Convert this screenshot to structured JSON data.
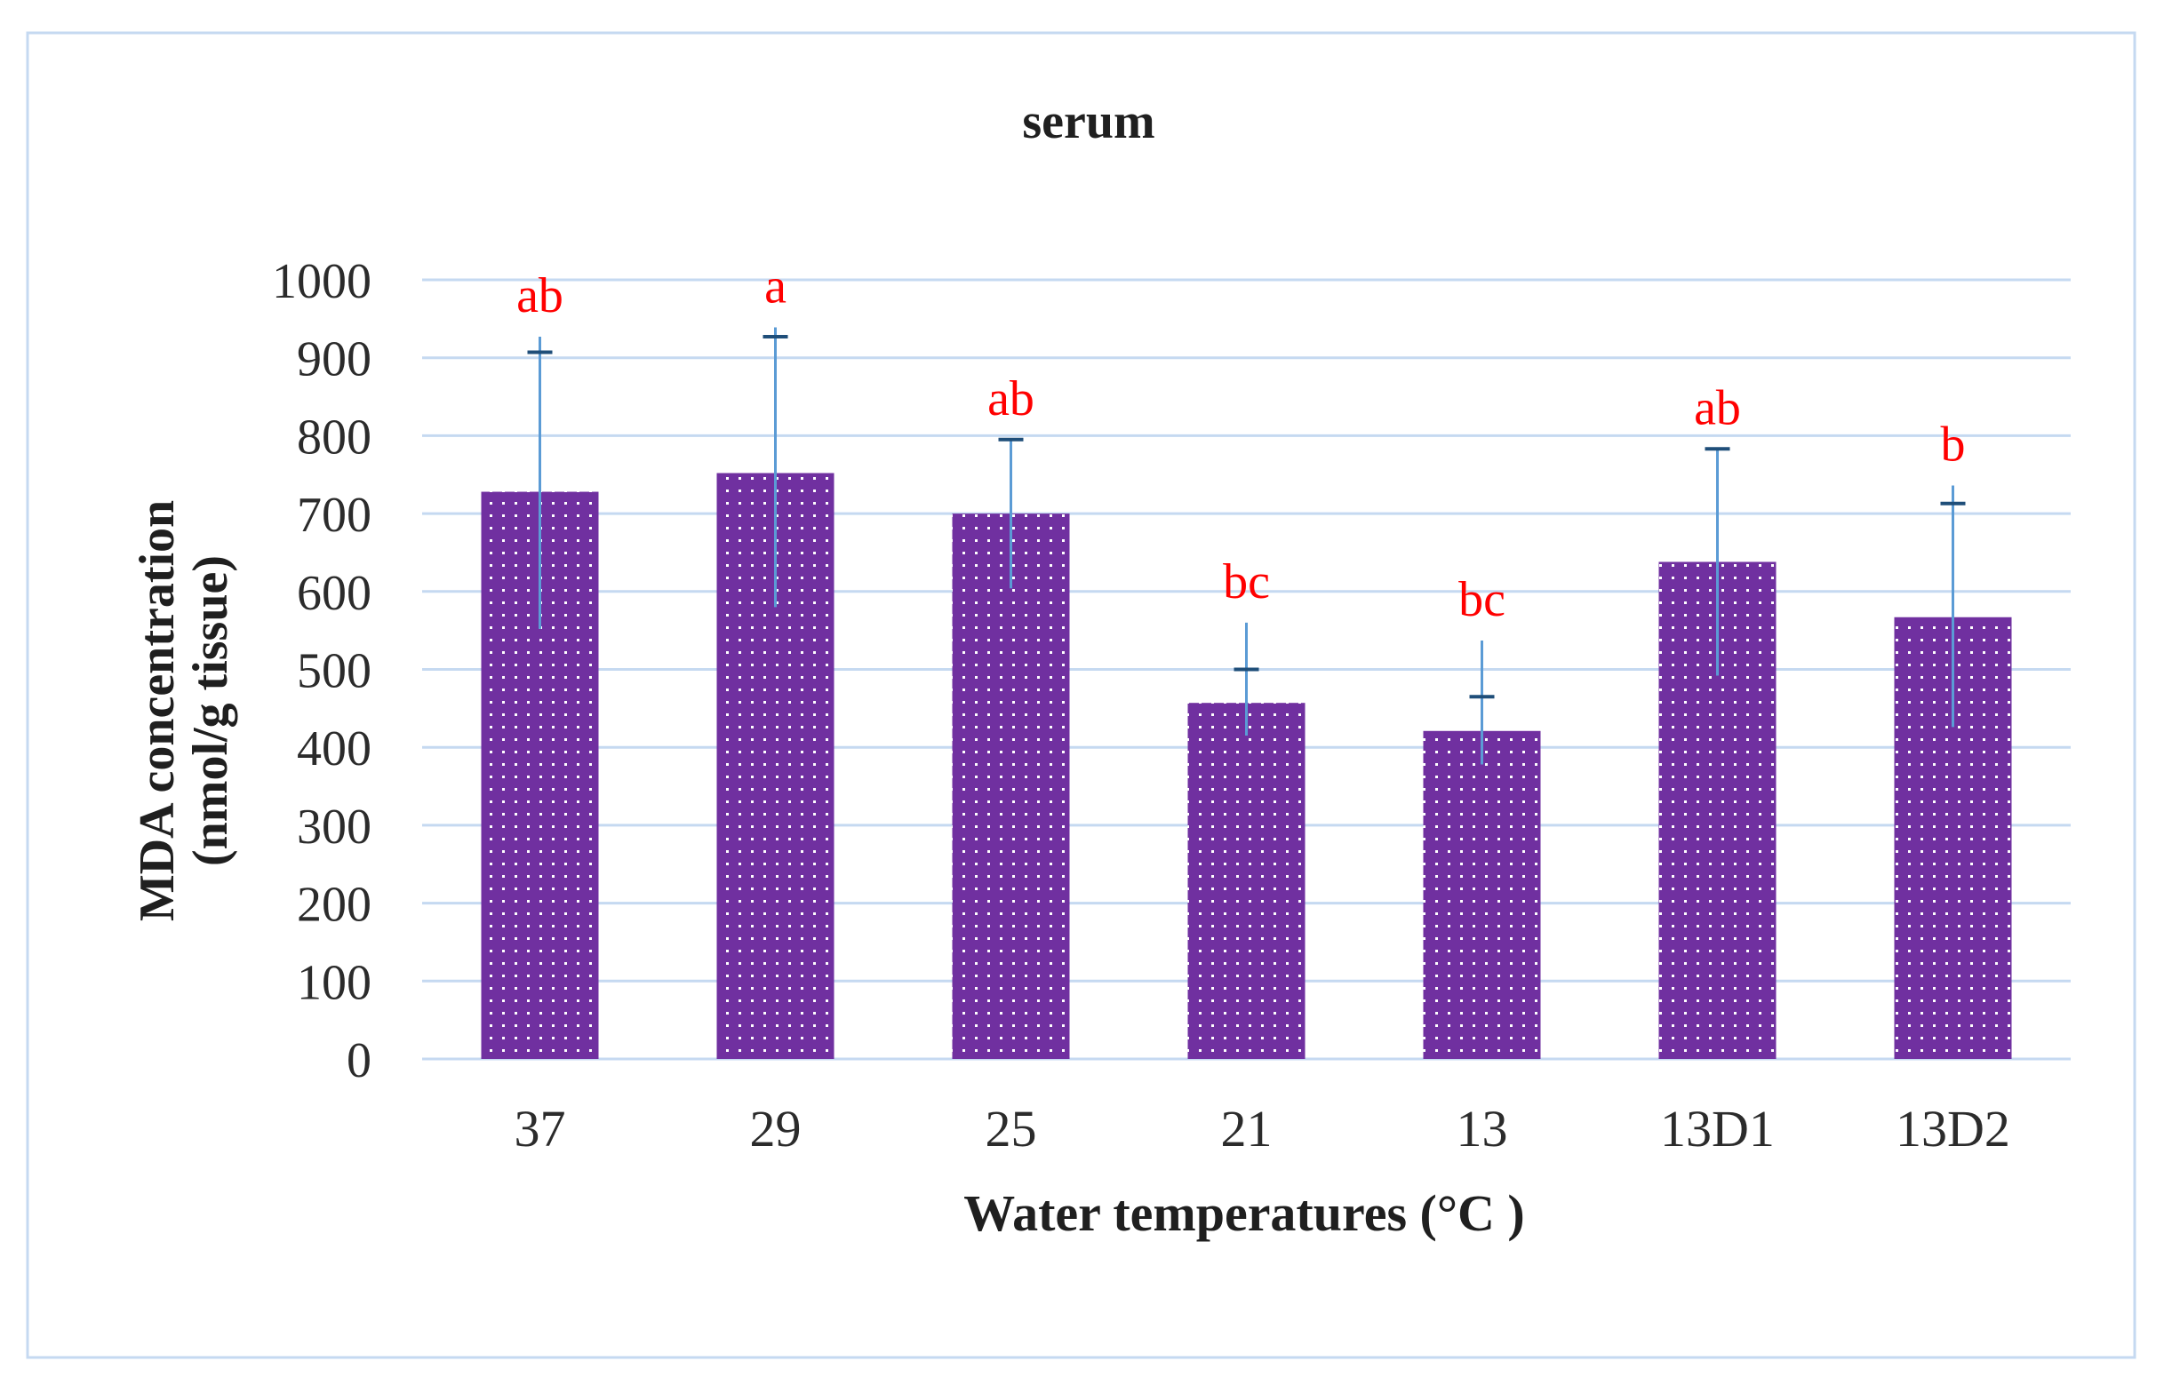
{
  "chart_data": {
    "type": "bar",
    "title": "serum",
    "xlabel": "Water temperatures (°C )",
    "ylabel_line1": "MDA concentration",
    "ylabel_line2": "(nmol/g tissue)",
    "categories": [
      "37",
      "29",
      "25",
      "21",
      "13",
      "13D1",
      "13D2"
    ],
    "values": [
      728,
      752,
      700,
      457,
      421,
      638,
      567
    ],
    "error_upper": [
      907,
      927,
      795,
      500,
      465,
      783,
      713
    ],
    "error_lower": [
      552,
      580,
      604,
      415,
      378,
      492,
      426
    ],
    "whisker_top": [
      927,
      939,
      795,
      560,
      537,
      783,
      736
    ],
    "significance_letters": [
      "ab",
      "a",
      "ab",
      "bc",
      "bc",
      "ab",
      "b"
    ],
    "ylim": [
      0,
      1000
    ],
    "yticks": [
      "0",
      "100",
      "200",
      "300",
      "400",
      "500",
      "600",
      "700",
      "800",
      "900",
      "1000"
    ],
    "ytick_values": [
      0,
      100,
      200,
      300,
      400,
      500,
      600,
      700,
      800,
      900,
      1000
    ],
    "grid": true,
    "legend": "none"
  },
  "colors": {
    "bar_fill": "#7030A0",
    "dot": "#ffffff",
    "grid": "#C5D9F1",
    "error_bar": "#5B9BD5",
    "error_cap": "#1F4E79",
    "letters": "#FF0000",
    "text": "#1F1F1F",
    "tick_text": "#2b2b2b",
    "frame": "#C5D9F1"
  }
}
